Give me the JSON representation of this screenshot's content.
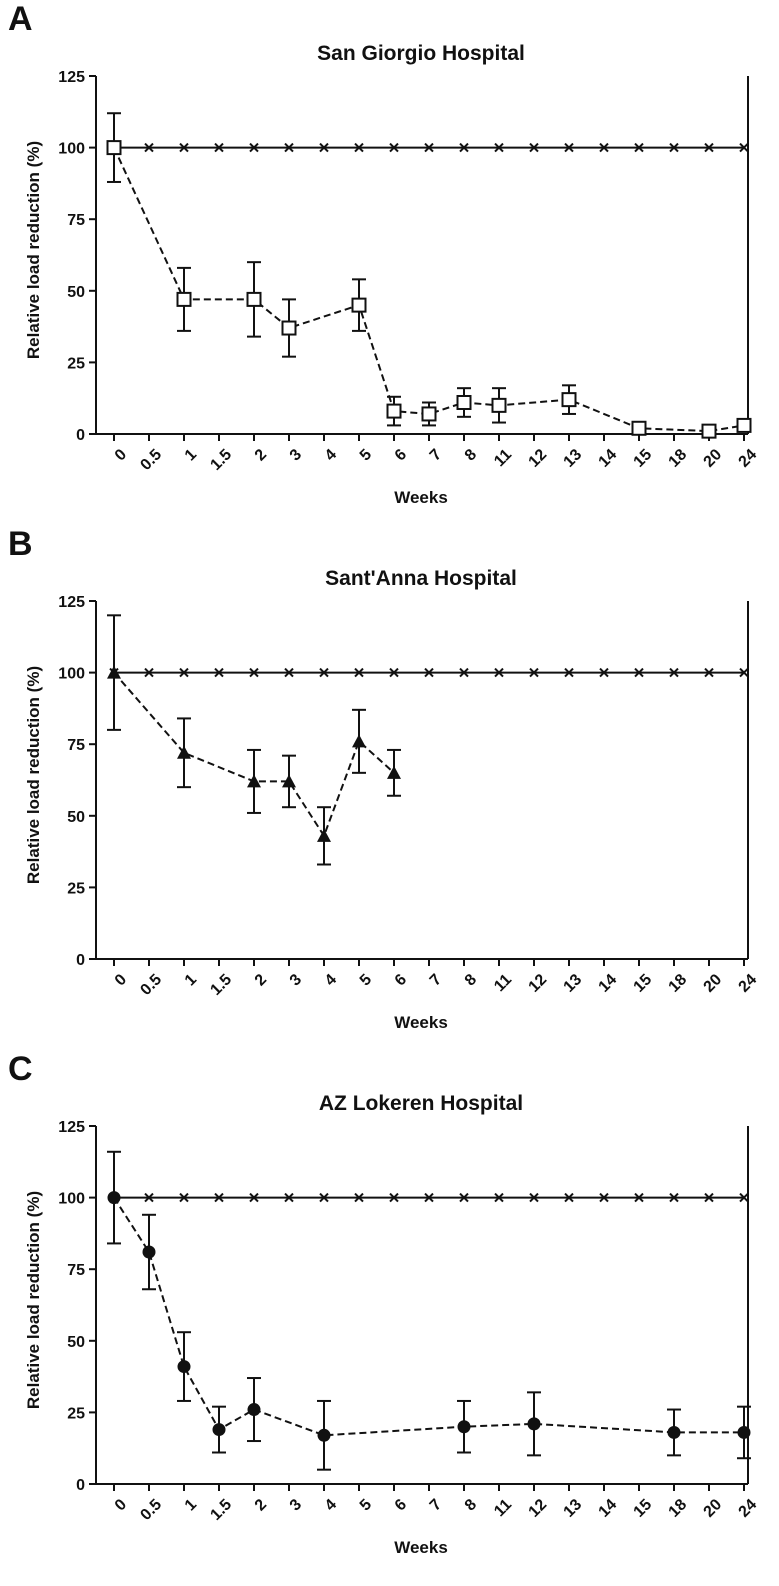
{
  "chart_data": [
    {
      "panel": "A",
      "type": "line",
      "title": "San Giorgio Hospital",
      "xlabel": "Weeks",
      "ylabel": "Relative load reduction (%)",
      "ylim": [
        0,
        125
      ],
      "yticks": [
        "0",
        "25",
        "50",
        "75",
        "100",
        "125"
      ],
      "categories": [
        "0",
        "0.5",
        "1",
        "1.5",
        "2",
        "3",
        "4",
        "5",
        "6",
        "7",
        "8",
        "11",
        "12",
        "13",
        "14",
        "15",
        "18",
        "20",
        "24"
      ],
      "grid": false,
      "series": [
        {
          "marker": "x",
          "line": "solid",
          "x": [
            "0",
            "0.5",
            "1",
            "1.5",
            "2",
            "3",
            "4",
            "5",
            "6",
            "7",
            "8",
            "11",
            "12",
            "13",
            "14",
            "15",
            "18",
            "20",
            "24"
          ],
          "y": [
            100,
            100,
            100,
            100,
            100,
            100,
            100,
            100,
            100,
            100,
            100,
            100,
            100,
            100,
            100,
            100,
            100,
            100,
            100
          ]
        },
        {
          "marker": "open-square",
          "line": "dashed",
          "x": [
            "0",
            "1",
            "2",
            "3",
            "5",
            "6",
            "7",
            "8",
            "11",
            "13",
            "15",
            "20",
            "24"
          ],
          "y": [
            100,
            47,
            47,
            37,
            45,
            8,
            7,
            11,
            10,
            12,
            2,
            1,
            3
          ],
          "err_low": [
            88,
            36,
            34,
            27,
            36,
            3,
            3,
            6,
            4,
            7,
            1,
            0,
            2
          ],
          "err_high": [
            112,
            58,
            60,
            47,
            54,
            13,
            11,
            16,
            16,
            17,
            3,
            2,
            4
          ]
        }
      ]
    },
    {
      "panel": "B",
      "type": "line",
      "title": "Sant'Anna Hospital",
      "xlabel": "Weeks",
      "ylabel": "Relative load reduction (%)",
      "ylim": [
        0,
        125
      ],
      "yticks": [
        "0",
        "25",
        "50",
        "75",
        "100",
        "125"
      ],
      "categories": [
        "0",
        "0.5",
        "1",
        "1.5",
        "2",
        "3",
        "4",
        "5",
        "6",
        "7",
        "8",
        "11",
        "12",
        "13",
        "14",
        "15",
        "18",
        "20",
        "24"
      ],
      "grid": false,
      "series": [
        {
          "marker": "x",
          "line": "solid",
          "x": [
            "0",
            "0.5",
            "1",
            "1.5",
            "2",
            "3",
            "4",
            "5",
            "6",
            "7",
            "8",
            "11",
            "12",
            "13",
            "14",
            "15",
            "18",
            "20",
            "24"
          ],
          "y": [
            100,
            100,
            100,
            100,
            100,
            100,
            100,
            100,
            100,
            100,
            100,
            100,
            100,
            100,
            100,
            100,
            100,
            100,
            100
          ]
        },
        {
          "marker": "filled-triangle",
          "line": "dashed",
          "x": [
            "0",
            "1",
            "2",
            "3",
            "4",
            "5",
            "6"
          ],
          "y": [
            100,
            72,
            62,
            62,
            43,
            76,
            65
          ],
          "err_low": [
            80,
            60,
            51,
            53,
            33,
            65,
            57
          ],
          "err_high": [
            120,
            84,
            73,
            71,
            53,
            87,
            73
          ]
        }
      ]
    },
    {
      "panel": "C",
      "type": "line",
      "title": "AZ Lokeren Hospital",
      "xlabel": "Weeks",
      "ylabel": "Relative load reduction (%)",
      "ylim": [
        0,
        125
      ],
      "yticks": [
        "0",
        "25",
        "50",
        "75",
        "100",
        "125"
      ],
      "categories": [
        "0",
        "0.5",
        "1",
        "1.5",
        "2",
        "3",
        "4",
        "5",
        "6",
        "7",
        "8",
        "11",
        "12",
        "13",
        "14",
        "15",
        "18",
        "20",
        "24"
      ],
      "grid": false,
      "series": [
        {
          "marker": "x",
          "line": "solid",
          "x": [
            "0",
            "0.5",
            "1",
            "1.5",
            "2",
            "3",
            "4",
            "5",
            "6",
            "7",
            "8",
            "11",
            "12",
            "13",
            "14",
            "15",
            "18",
            "20",
            "24"
          ],
          "y": [
            100,
            100,
            100,
            100,
            100,
            100,
            100,
            100,
            100,
            100,
            100,
            100,
            100,
            100,
            100,
            100,
            100,
            100,
            100
          ]
        },
        {
          "marker": "filled-circle",
          "line": "dashed",
          "x": [
            "0",
            "0.5",
            "1",
            "1.5",
            "2",
            "4",
            "8",
            "12",
            "18",
            "24"
          ],
          "y": [
            100,
            81,
            41,
            19,
            26,
            17,
            20,
            21,
            18,
            18
          ],
          "err_low": [
            84,
            68,
            29,
            11,
            15,
            5,
            11,
            10,
            10,
            9
          ],
          "err_high": [
            116,
            94,
            53,
            27,
            37,
            29,
            29,
            32,
            26,
            27
          ]
        }
      ]
    }
  ]
}
